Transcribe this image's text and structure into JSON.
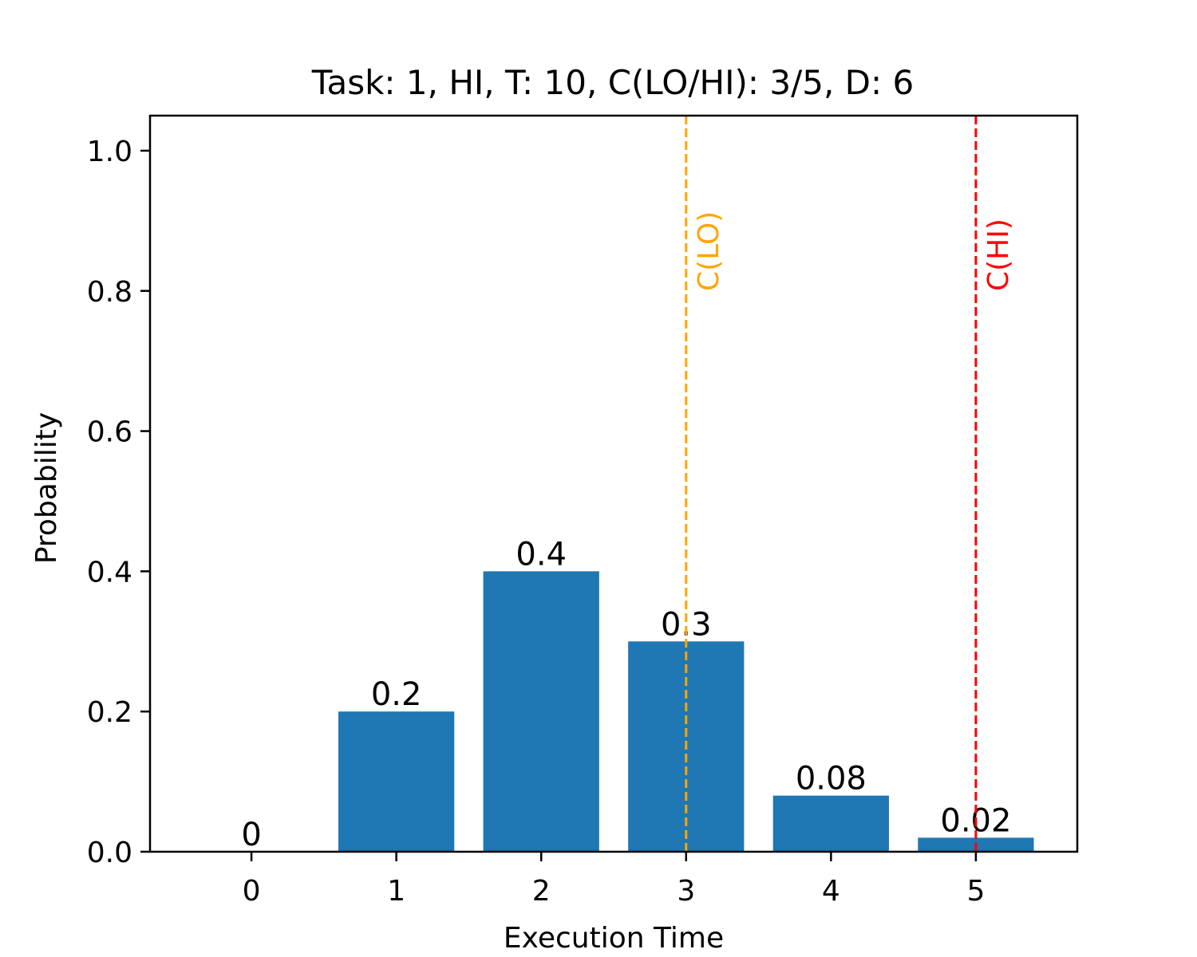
{
  "chart_data": {
    "type": "bar",
    "title": "Task: 1, HI, T: 10, C(LO/HI): 3/5, D: 6",
    "xlabel": "Execution Time",
    "ylabel": "Probability",
    "categories": [
      0,
      1,
      2,
      3,
      4,
      5
    ],
    "values": [
      0,
      0.2,
      0.4,
      0.3,
      0.08,
      0.02
    ],
    "data_labels": [
      "0",
      "0.2",
      "0.4",
      "0.3",
      "0.08",
      "0.02"
    ],
    "xlim": [
      -0.7,
      5.7
    ],
    "ylim": [
      0,
      1.05
    ],
    "yticks": [
      0.0,
      0.2,
      0.4,
      0.6,
      0.8,
      1.0
    ],
    "ytick_labels": [
      "0.0",
      "0.2",
      "0.4",
      "0.6",
      "0.8",
      "1.0"
    ],
    "xticks": [
      0,
      1,
      2,
      3,
      4,
      5
    ],
    "xtick_labels": [
      "0",
      "1",
      "2",
      "3",
      "4",
      "5"
    ],
    "bar_color": "#1f77b4",
    "grid": false,
    "reference_lines": [
      {
        "x": 3,
        "label": "C(LO)",
        "color": "#ffa500",
        "style": "dashed"
      },
      {
        "x": 5,
        "label": "C(HI)",
        "color": "#ff0000",
        "style": "dashed"
      }
    ]
  }
}
